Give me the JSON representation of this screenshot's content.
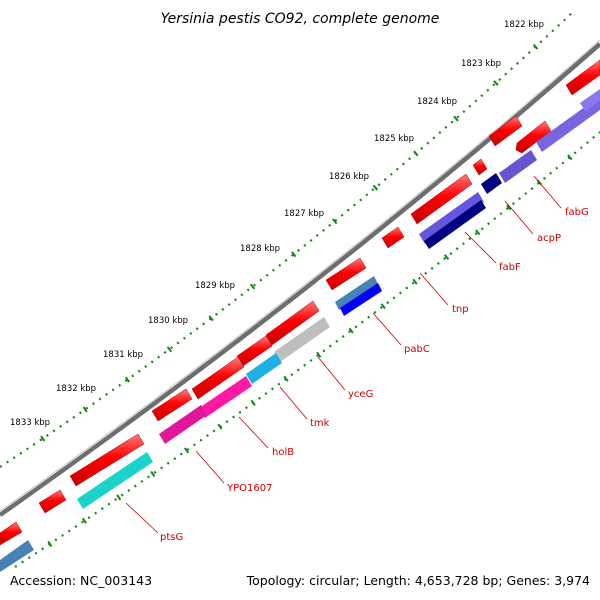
{
  "title": "Yersinia pestis CO92, complete genome",
  "footer": {
    "accession": "Accession: NC_003143",
    "summary": "Topology: circular; Length: 4,653,728 bp; Genes: 3,974"
  },
  "ticks": [
    {
      "label": "1822 kbp"
    },
    {
      "label": "1823 kbp"
    },
    {
      "label": "1824 kbp"
    },
    {
      "label": "1825 kbp"
    },
    {
      "label": "1826 kbp"
    },
    {
      "label": "1827 kbp"
    },
    {
      "label": "1828 kbp"
    },
    {
      "label": "1829 kbp"
    },
    {
      "label": "1830 kbp"
    },
    {
      "label": "1831 kbp"
    },
    {
      "label": "1832 kbp"
    },
    {
      "label": "1833 kbp"
    }
  ],
  "gene_labels": [
    {
      "name": "fabG"
    },
    {
      "name": "acpP"
    },
    {
      "name": "fabF"
    },
    {
      "name": "tnp"
    },
    {
      "name": "pabC"
    },
    {
      "name": "yceG"
    },
    {
      "name": "tmk"
    },
    {
      "name": "holB"
    },
    {
      "name": "YPO1607"
    },
    {
      "name": "ptsG"
    }
  ],
  "colors": {
    "backbone": "#7a7a7a",
    "cds": "#ff0000",
    "tick": "#118811",
    "label": "#cc0000"
  }
}
